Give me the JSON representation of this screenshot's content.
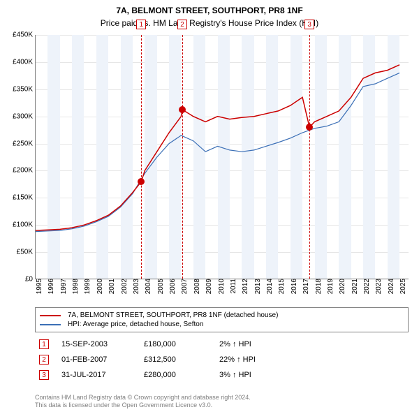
{
  "title": "7A, BELMONT STREET, SOUTHPORT, PR8 1NF",
  "subtitle": "Price paid vs. HM Land Registry's House Price Index (HPI)",
  "chart": {
    "type": "line",
    "x_start": 1995,
    "x_end": 2025.8,
    "ylim": [
      0,
      450000
    ],
    "ytick_step": 50000,
    "yticks": [
      "£0",
      "£50K",
      "£100K",
      "£150K",
      "£200K",
      "£250K",
      "£300K",
      "£350K",
      "£400K",
      "£450K"
    ],
    "xticks": [
      1995,
      1996,
      1997,
      1998,
      1999,
      2000,
      2001,
      2002,
      2003,
      2004,
      2005,
      2006,
      2007,
      2008,
      2009,
      2010,
      2011,
      2012,
      2013,
      2014,
      2015,
      2016,
      2017,
      2018,
      2019,
      2020,
      2021,
      2022,
      2023,
      2024,
      2025
    ],
    "grid_color": "#e6e6e6",
    "axis_color": "#808080",
    "band_color": "#eef3fa",
    "series": [
      {
        "name": "7A, BELMONT STREET, SOUTHPORT, PR8 1NF (detached house)",
        "color": "#cc0000",
        "width": 1.5,
        "points": [
          [
            1995,
            90000
          ],
          [
            1996,
            91000
          ],
          [
            1997,
            92000
          ],
          [
            1998,
            95000
          ],
          [
            1999,
            100000
          ],
          [
            2000,
            108000
          ],
          [
            2001,
            118000
          ],
          [
            2002,
            135000
          ],
          [
            2003,
            160000
          ],
          [
            2003.71,
            180000
          ],
          [
            2004,
            200000
          ],
          [
            2005,
            235000
          ],
          [
            2006,
            270000
          ],
          [
            2007,
            300000
          ],
          [
            2007.09,
            312500
          ],
          [
            2008,
            300000
          ],
          [
            2009,
            290000
          ],
          [
            2010,
            300000
          ],
          [
            2011,
            295000
          ],
          [
            2012,
            298000
          ],
          [
            2013,
            300000
          ],
          [
            2014,
            305000
          ],
          [
            2015,
            310000
          ],
          [
            2016,
            320000
          ],
          [
            2017,
            335000
          ],
          [
            2017.58,
            280000
          ],
          [
            2018,
            290000
          ],
          [
            2019,
            300000
          ],
          [
            2020,
            310000
          ],
          [
            2021,
            335000
          ],
          [
            2022,
            370000
          ],
          [
            2023,
            380000
          ],
          [
            2024,
            385000
          ],
          [
            2025,
            395000
          ]
        ]
      },
      {
        "name": "HPI: Average price, detached house, Sefton",
        "color": "#3b6fb6",
        "width": 1.2,
        "points": [
          [
            1995,
            88000
          ],
          [
            1996,
            89000
          ],
          [
            1997,
            90000
          ],
          [
            1998,
            93000
          ],
          [
            1999,
            98000
          ],
          [
            2000,
            106000
          ],
          [
            2001,
            116000
          ],
          [
            2002,
            133000
          ],
          [
            2003,
            158000
          ],
          [
            2004,
            195000
          ],
          [
            2005,
            225000
          ],
          [
            2006,
            250000
          ],
          [
            2007,
            265000
          ],
          [
            2008,
            255000
          ],
          [
            2009,
            235000
          ],
          [
            2010,
            245000
          ],
          [
            2011,
            238000
          ],
          [
            2012,
            235000
          ],
          [
            2013,
            238000
          ],
          [
            2014,
            245000
          ],
          [
            2015,
            252000
          ],
          [
            2016,
            260000
          ],
          [
            2017,
            270000
          ],
          [
            2018,
            278000
          ],
          [
            2019,
            282000
          ],
          [
            2020,
            290000
          ],
          [
            2021,
            320000
          ],
          [
            2022,
            355000
          ],
          [
            2023,
            360000
          ],
          [
            2024,
            370000
          ],
          [
            2025,
            380000
          ]
        ]
      }
    ],
    "reflines": [
      {
        "id": "1",
        "x": 2003.71
      },
      {
        "id": "2",
        "x": 2007.09
      },
      {
        "id": "3",
        "x": 2017.58
      }
    ],
    "markers": [
      {
        "x": 2003.71,
        "y": 180000,
        "color": "#cc0000"
      },
      {
        "x": 2007.09,
        "y": 312500,
        "color": "#cc0000"
      },
      {
        "x": 2017.58,
        "y": 280000,
        "color": "#cc0000"
      }
    ]
  },
  "events": [
    {
      "id": "1",
      "date": "15-SEP-2003",
      "price": "£180,000",
      "pct": "2% ↑ HPI"
    },
    {
      "id": "2",
      "date": "01-FEB-2007",
      "price": "£312,500",
      "pct": "22% ↑ HPI"
    },
    {
      "id": "3",
      "date": "31-JUL-2017",
      "price": "£280,000",
      "pct": "3% ↑ HPI"
    }
  ],
  "footer": {
    "line1": "Contains HM Land Registry data © Crown copyright and database right 2024.",
    "line2": "This data is licensed under the Open Government Licence v3.0."
  }
}
